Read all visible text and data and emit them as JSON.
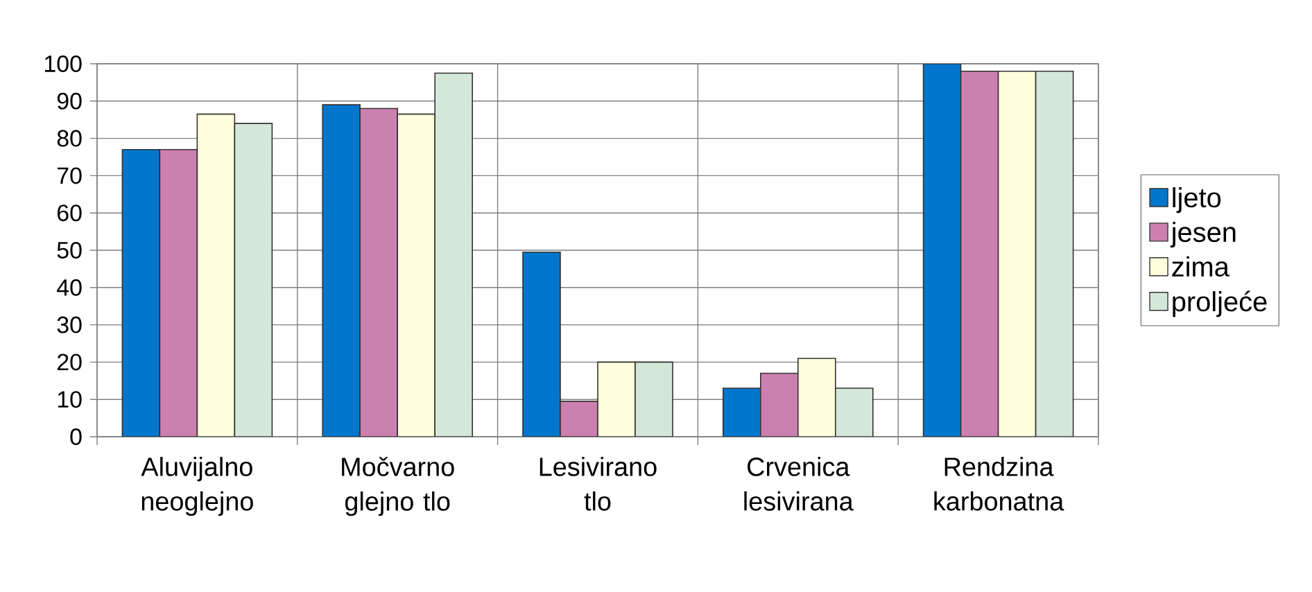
{
  "chart_data": {
    "type": "bar",
    "categories": [
      "Aluvijalno neoglejno",
      "Močvarno glejno tlo",
      "Lesivirano tlo",
      "Crvenica lesivirana",
      "Rendzina karbonatna"
    ],
    "series": [
      {
        "name": "ljeto",
        "color": "#0077cc",
        "values": [
          77,
          89,
          49.5,
          13,
          100
        ]
      },
      {
        "name": "jesen",
        "color": "#cc80b0",
        "values": [
          77,
          88,
          9.5,
          17,
          98
        ]
      },
      {
        "name": "zima",
        "color": "#ffffdd",
        "values": [
          86.5,
          86.5,
          20,
          21,
          98
        ]
      },
      {
        "name": "proljeće",
        "color": "#d4e8da",
        "values": [
          84,
          97.5,
          20,
          13,
          98
        ]
      }
    ],
    "ylim": [
      0,
      100
    ],
    "yticks": [
      0,
      10,
      20,
      30,
      40,
      50,
      60,
      70,
      80,
      90,
      100
    ],
    "grid": true,
    "legend": "right"
  }
}
